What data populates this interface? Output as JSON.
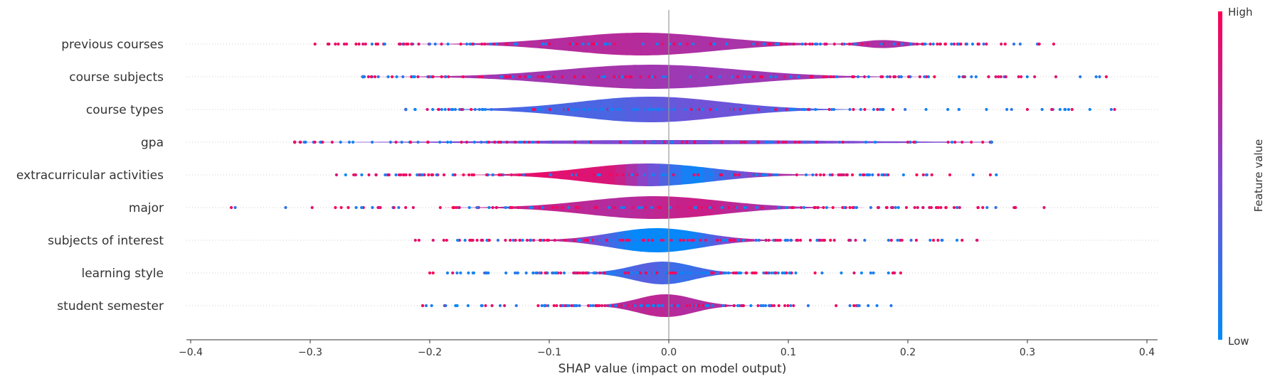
{
  "chart_data": {
    "type": "violin-summary",
    "xlabel": "SHAP value (impact on model output)",
    "xlim": [
      -0.4,
      0.41
    ],
    "xticks": [
      -0.4,
      -0.3,
      -0.2,
      -0.1,
      0.0,
      0.1,
      0.2,
      0.3,
      0.4
    ],
    "xtick_labels": [
      "−0.4",
      "−0.3",
      "−0.2",
      "−0.1",
      "0.0",
      "0.1",
      "0.2",
      "0.3",
      "0.4"
    ],
    "colorbar": {
      "title": "Feature value",
      "high_label": "High",
      "low_label": "Low",
      "low_color": "#008bfb",
      "high_color": "#ff0052"
    },
    "features": [
      {
        "name": "previous courses",
        "range": [
          -0.296,
          0.322
        ],
        "core": [
          -0.12,
          0.075
        ],
        "tail": [
          0.148,
          0.21
        ],
        "width": 0.8,
        "color_profile": [
          0.68,
          0.7,
          0.72,
          0.66,
          0.7,
          0.65
        ],
        "point_mix": 0.55
      },
      {
        "name": "course subjects",
        "range": [
          -0.256,
          0.366
        ],
        "core": [
          -0.13,
          0.1
        ],
        "tail": null,
        "width": 0.85,
        "color_profile": [
          0.8,
          0.62,
          0.66,
          0.6,
          0.64,
          0.62
        ],
        "point_mix": 0.55
      },
      {
        "name": "course types",
        "range": [
          -0.22,
          0.373
        ],
        "core": [
          -0.11,
          0.08
        ],
        "tail": null,
        "width": 0.9,
        "color_profile": [
          0.35,
          0.28,
          0.3,
          0.45,
          0.36,
          0.34
        ],
        "point_mix": 0.35
      },
      {
        "name": "gpa",
        "range": [
          -0.313,
          0.27
        ],
        "core": [
          -0.2,
          0.22
        ],
        "tail": null,
        "width": 0.15,
        "color_profile": [
          0.55,
          0.5,
          0.5,
          0.5,
          0.5,
          0.55
        ],
        "point_mix": 0.5
      },
      {
        "name": "extracurricular activities",
        "range": [
          -0.278,
          0.274
        ],
        "core": [
          -0.1,
          0.065
        ],
        "tail": null,
        "width": 0.8,
        "color_profile": [
          0.8,
          0.9,
          0.85,
          0.02,
          0.7,
          0.6
        ],
        "point_mix": 0.6
      },
      {
        "name": "major",
        "range": [
          -0.366,
          0.314
        ],
        "core": [
          -0.1,
          0.075
        ],
        "tail": null,
        "width": 0.8,
        "color_profile": [
          0.75,
          0.78,
          0.7,
          0.8,
          0.62,
          0.7
        ],
        "point_mix": 0.65
      },
      {
        "name": "subjects of interest",
        "range": [
          -0.212,
          0.258
        ],
        "core": [
          -0.07,
          0.05
        ],
        "tail": null,
        "width": 0.85,
        "color_profile": [
          0.8,
          0.7,
          0.02,
          0.03,
          0.75,
          0.72
        ],
        "point_mix": 0.65
      },
      {
        "name": "learning style",
        "range": [
          -0.2,
          0.194
        ],
        "core": [
          -0.045,
          0.035
        ],
        "tail": null,
        "width": 0.8,
        "color_profile": [
          0.3,
          0.18,
          0.35,
          0.2,
          0.32,
          0.3
        ],
        "point_mix": 0.45
      },
      {
        "name": "student semester",
        "range": [
          -0.206,
          0.186
        ],
        "core": [
          -0.04,
          0.035
        ],
        "tail": null,
        "width": 0.8,
        "color_profile": [
          0.6,
          0.7,
          0.75,
          0.7,
          0.7,
          0.65
        ],
        "point_mix": 0.45
      }
    ]
  }
}
